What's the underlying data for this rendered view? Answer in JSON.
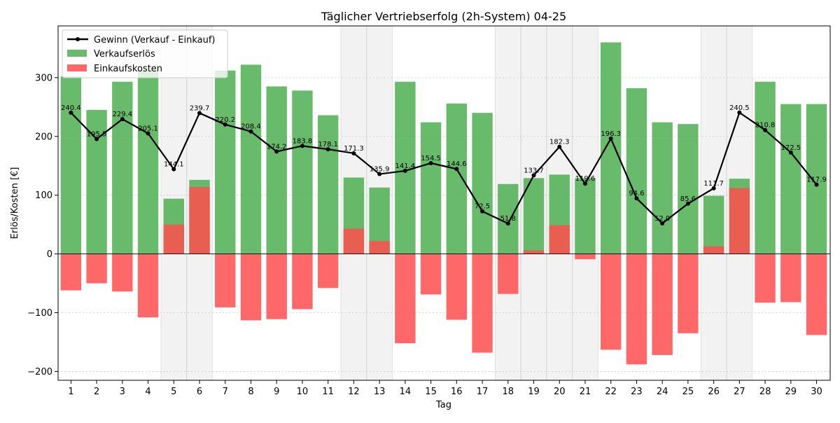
{
  "chart_data": {
    "type": "bar",
    "title": "Täglicher Vertriebserfolg (2h-System) 04-25",
    "xlabel": "Tag",
    "ylabel": "Erlös/Kosten [€]",
    "ylim": [
      -215,
      388
    ],
    "y_ticks": [
      -200,
      -100,
      0,
      100,
      200,
      300
    ],
    "grid": true,
    "legend_position": "top-left",
    "categories": [
      "1",
      "2",
      "3",
      "4",
      "5",
      "6",
      "7",
      "8",
      "9",
      "10",
      "11",
      "12",
      "13",
      "14",
      "15",
      "16",
      "17",
      "18",
      "19",
      "20",
      "21",
      "22",
      "23",
      "24",
      "25",
      "26",
      "27",
      "28",
      "29",
      "30"
    ],
    "weekend_days": [
      "5",
      "6",
      "12",
      "13",
      "18",
      "19",
      "20",
      "21",
      "26",
      "27"
    ],
    "series": [
      {
        "name": "Gewinn (Verkauf - Einkauf)",
        "kind": "line",
        "color": "#000000",
        "values": [
          240.4,
          195.5,
          229.4,
          205.1,
          144.1,
          239.7,
          220.2,
          208.4,
          174.2,
          183.8,
          178.1,
          171.3,
          135.9,
          141.4,
          154.5,
          144.6,
          72.5,
          51.8,
          133.7,
          182.3,
          119.6,
          196.3,
          94.6,
          52.0,
          85.6,
          111.7,
          240.5,
          210.8,
          172.5,
          117.9
        ]
      },
      {
        "name": "Verkaufserlös",
        "kind": "bar",
        "color": "#4caf50",
        "values": [
          302,
          245,
          293,
          313,
          94,
          126,
          312,
          322,
          285,
          278,
          236,
          130,
          113,
          293,
          224,
          256,
          240,
          119,
          129,
          135,
          129,
          360,
          282,
          224,
          221,
          99,
          128,
          293,
          255,
          255
        ]
      },
      {
        "name": "Einkaufskosten",
        "kind": "bar",
        "color": "#ff4d4d",
        "values": [
          -62,
          -50,
          -64,
          -108,
          50,
          114,
          -91,
          -113,
          -111,
          -94,
          -58,
          43,
          22,
          -152,
          -69,
          -112,
          -168,
          -68,
          6,
          49,
          -9,
          -163,
          -188,
          -172,
          -135,
          13,
          112,
          -83,
          -82,
          -138
        ]
      }
    ]
  }
}
